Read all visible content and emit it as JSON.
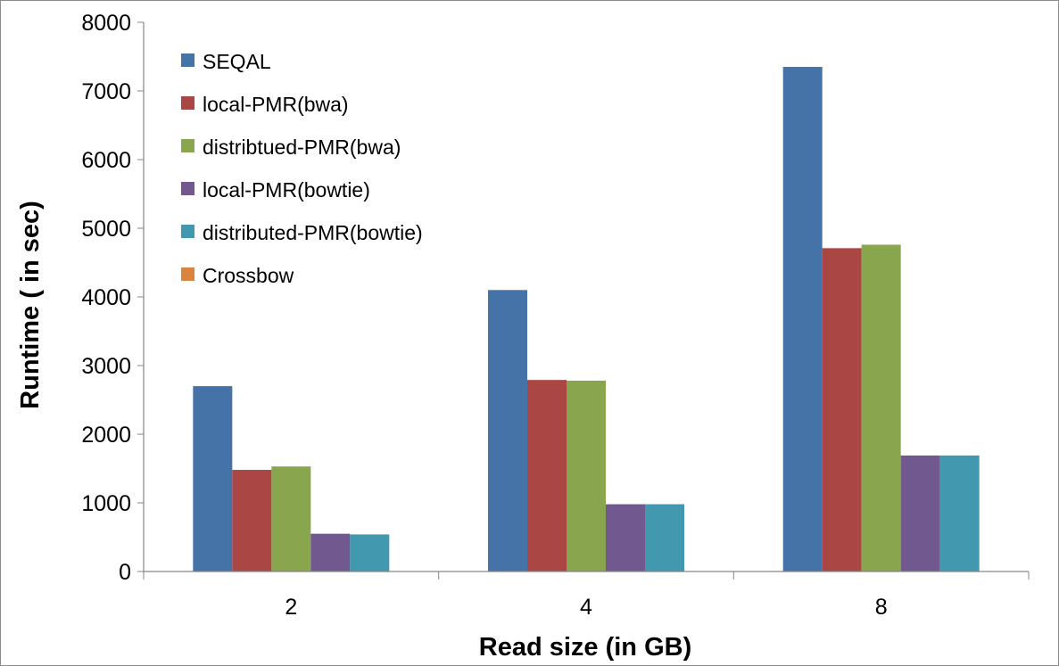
{
  "chart_data": {
    "type": "bar",
    "title": "",
    "xlabel": "Read size (in GB)",
    "ylabel": "Runtime ( in sec)",
    "ylim": [
      0,
      8000
    ],
    "yticks": [
      0,
      1000,
      2000,
      3000,
      4000,
      5000,
      6000,
      7000,
      8000
    ],
    "grid": false,
    "legend_position": "top-left",
    "categories": [
      "2",
      "4",
      "8"
    ],
    "series": [
      {
        "name": "SEQAL",
        "color": "#4572a7",
        "values": [
          2700,
          4100,
          7350
        ]
      },
      {
        "name": "local-PMR(bwa)",
        "color": "#aa4643",
        "values": [
          1480,
          2790,
          4710
        ]
      },
      {
        "name": "distribtued-PMR(bwa)",
        "color": "#89a54e",
        "values": [
          1530,
          2780,
          4760
        ]
      },
      {
        "name": "local-PMR(bowtie)",
        "color": "#71588f",
        "values": [
          550,
          980,
          1690
        ]
      },
      {
        "name": "distributed-PMR(bowtie)",
        "color": "#4198af",
        "values": [
          540,
          980,
          1690
        ]
      },
      {
        "name": "Crossbow",
        "color": "#db843d",
        "values": [
          null,
          null,
          null
        ]
      }
    ]
  }
}
